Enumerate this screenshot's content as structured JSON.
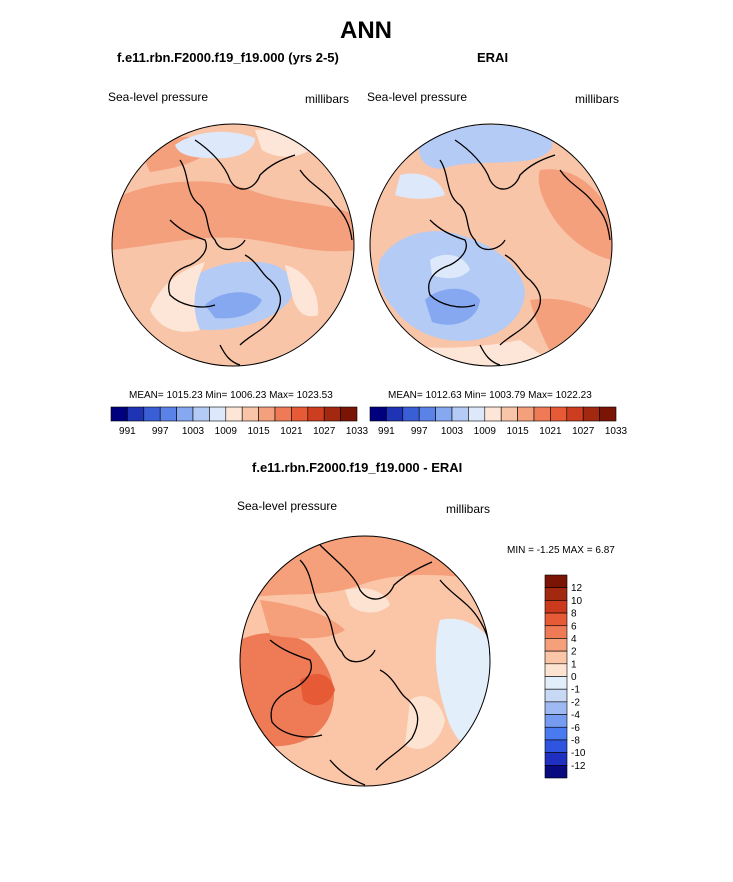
{
  "page": {
    "title": "ANN"
  },
  "panels": [
    {
      "id": "left",
      "header": "f.e11.rbn.F2000.f19_f19.000 (yrs 2-5)",
      "left_label": "Sea-level pressure",
      "right_label": "millibars",
      "stats_text": "MEAN= 1015.23  Min= 1006.23  Max= 1023.53"
    },
    {
      "id": "right",
      "header": "ERAI",
      "left_label": "Sea-level pressure",
      "right_label": "millibars",
      "stats_text": "MEAN= 1012.63  Min= 1003.79  Max= 1022.23"
    },
    {
      "id": "diff",
      "header": "f.e11.rbn.F2000.f19_f19.000 - ERAI",
      "left_label": "Sea-level pressure",
      "right_label": "millibars",
      "stats_text": "MIN =  -1.25 MAX =  6.87"
    }
  ],
  "colors": {
    "abs_scale": [
      "#00007f",
      "#1f34b5",
      "#3a5ed6",
      "#5b82e6",
      "#86a8f0",
      "#b3cbf5",
      "#dde9fb",
      "#fde6d7",
      "#f9c5a9",
      "#f4a07d",
      "#ee7b55",
      "#e65a36",
      "#cd3d1f",
      "#a32810",
      "#7a1405"
    ],
    "diff_scale": [
      "#0a0a80",
      "#1f2fc0",
      "#2f55e0",
      "#4a7af0",
      "#769cf2",
      "#9fbaf3",
      "#c8d9f6",
      "#e3eefb",
      "#fde3d2",
      "#fbc6a7",
      "#f5a07b",
      "#ee7b55",
      "#e65a36",
      "#cc3a1d",
      "#a32810",
      "#7a1405"
    ],
    "land_outline": "#000000"
  },
  "chart_data": [
    {
      "type": "heatmap",
      "name": "model-slp",
      "title": "f.e11.rbn.F2000.f19_f19.000 (yrs 2-5)",
      "variable": "Sea-level pressure",
      "units": "millibars",
      "projection": "north-polar-stereographic",
      "mean": 1015.23,
      "min": 1006.23,
      "max": 1023.53,
      "colorbar_ticks": [
        "991",
        "997",
        "1003",
        "1009",
        "1015",
        "1021",
        "1027",
        "1033"
      ],
      "colorbar_levels": [
        988,
        991,
        994,
        997,
        1000,
        1003,
        1006,
        1009,
        1012,
        1015,
        1018,
        1021,
        1024,
        1027,
        1030,
        1033,
        1036
      ]
    },
    {
      "type": "heatmap",
      "name": "erai-slp",
      "title": "ERAI",
      "variable": "Sea-level pressure",
      "units": "millibars",
      "projection": "north-polar-stereographic",
      "mean": 1012.63,
      "min": 1003.79,
      "max": 1022.23,
      "colorbar_ticks": [
        "991",
        "997",
        "1003",
        "1009",
        "1015",
        "1021",
        "1027",
        "1033"
      ],
      "colorbar_levels": [
        988,
        991,
        994,
        997,
        1000,
        1003,
        1006,
        1009,
        1012,
        1015,
        1018,
        1021,
        1024,
        1027,
        1030,
        1033,
        1036
      ]
    },
    {
      "type": "heatmap",
      "name": "diff-slp",
      "title": "f.e11.rbn.F2000.f19_f19.000 - ERAI",
      "variable": "Sea-level pressure",
      "units": "millibars",
      "projection": "north-polar-stereographic",
      "min": -1.25,
      "max": 6.87,
      "colorbar_ticks": [
        "12",
        "10",
        "8",
        "6",
        "4",
        "2",
        "1",
        "0",
        "-1",
        "-2",
        "-4",
        "-6",
        "-8",
        "-10",
        "-12"
      ],
      "colorbar_orientation": "vertical"
    }
  ]
}
